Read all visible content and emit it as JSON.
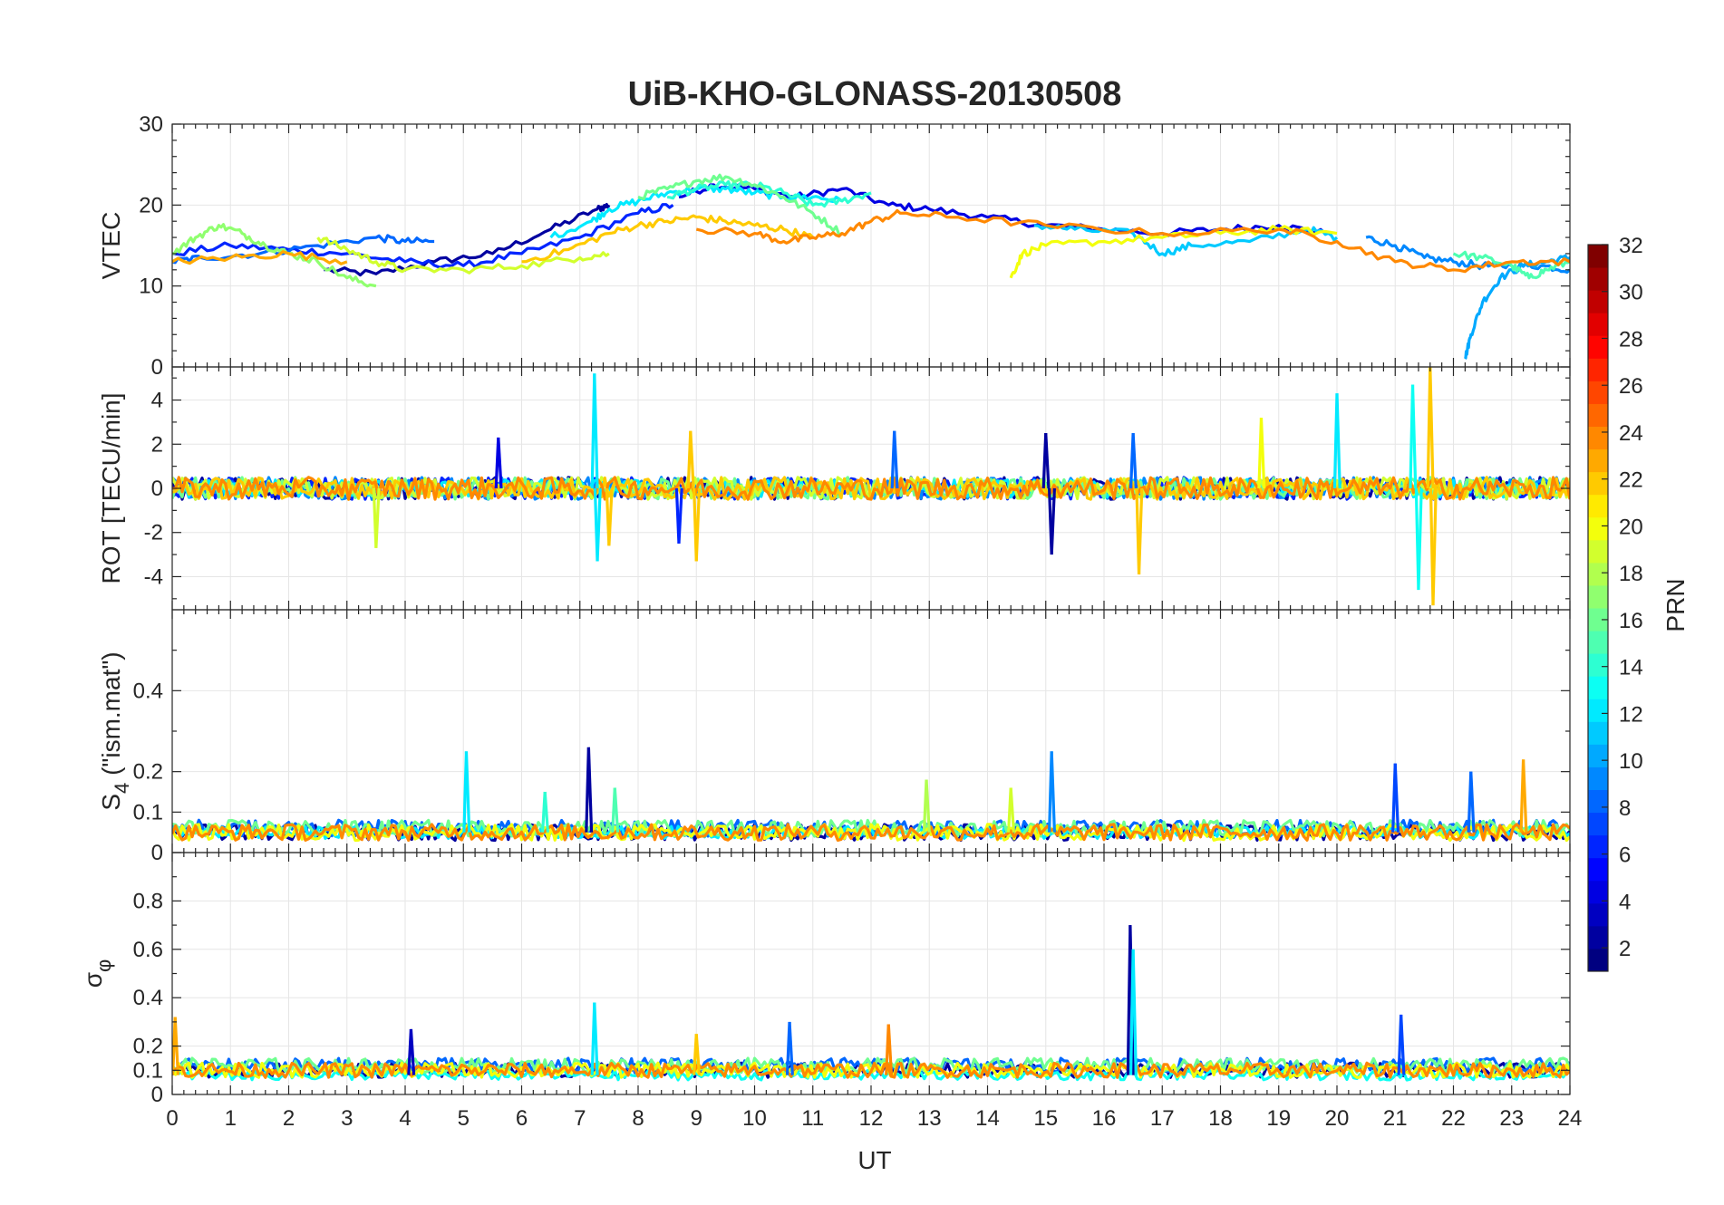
{
  "figure": {
    "title": "UiB-KHO-GLONASS-20130508",
    "xlabel": "UT",
    "x_ticks": [
      "0",
      "1",
      "2",
      "3",
      "4",
      "5",
      "6",
      "7",
      "8",
      "9",
      "10",
      "11",
      "12",
      "13",
      "14",
      "15",
      "16",
      "17",
      "18",
      "19",
      "20",
      "21",
      "22",
      "23",
      "24"
    ]
  },
  "colorbar": {
    "label": "PRN",
    "ticks": [
      "2",
      "4",
      "6",
      "8",
      "10",
      "12",
      "14",
      "16",
      "18",
      "20",
      "22",
      "24",
      "26",
      "28",
      "30",
      "32"
    ],
    "range": [
      1,
      32
    ],
    "colormap": "jet"
  },
  "chart_data": [
    {
      "type": "line",
      "panel": "VTEC",
      "ylabel": "VTEC",
      "ylim": [
        0,
        30
      ],
      "y_ticks": [
        "0",
        "10",
        "20",
        "30"
      ],
      "xlim": [
        0,
        24
      ],
      "grid": true,
      "series": [
        {
          "prn": 2,
          "x": [
            2.6,
            3.5,
            4.5,
            5.5,
            6.5,
            7.3,
            7.5
          ],
          "y": [
            12,
            11.5,
            13,
            14,
            17,
            19.5,
            20
          ]
        },
        {
          "prn": 4,
          "x": [
            8.7,
            9.3,
            10.0,
            10.7,
            11.5,
            12.3,
            13.0,
            14.0,
            15.0,
            16.0,
            17.0,
            18.0,
            19.0,
            19.8
          ],
          "y": [
            21,
            22.5,
            22,
            21,
            22,
            20,
            19.5,
            18.5,
            17.5,
            17,
            16.5,
            17,
            17.5,
            16.5
          ]
        },
        {
          "prn": 6,
          "x": [
            0,
            1,
            2,
            3,
            4,
            5,
            6,
            7,
            8,
            8.6
          ],
          "y": [
            14,
            15,
            14.5,
            14,
            13,
            12.5,
            14,
            16,
            19,
            20
          ]
        },
        {
          "prn": 8,
          "x": [
            0,
            0.5,
            1.5,
            2.5,
            3.5,
            4.0,
            4.5
          ],
          "y": [
            13,
            13.5,
            14,
            15,
            16,
            15.5,
            15.5
          ]
        },
        {
          "prn": 9,
          "x": [
            20.5,
            21.0,
            21.5,
            22.0,
            22.5,
            23.0,
            23.5,
            24.0
          ],
          "y": [
            16,
            15,
            13.5,
            13,
            12.5,
            12.5,
            12.5,
            12
          ]
        },
        {
          "prn": 10,
          "x": [
            22.2,
            22.3,
            22.5,
            22.8,
            23.2,
            23.6,
            24.0
          ],
          "y": [
            1,
            4,
            8,
            11,
            12.5,
            13,
            13.5
          ]
        },
        {
          "prn": 11,
          "x": [
            14.8,
            15.5,
            16.5,
            17.0,
            17.5,
            18.5,
            19.5,
            20.0
          ],
          "y": [
            17.5,
            17,
            16.5,
            14,
            15,
            15.5,
            17,
            16
          ]
        },
        {
          "prn": 12,
          "x": [
            6.5,
            7.2,
            7.5,
            8.0,
            8.5,
            9.0,
            9.5,
            10.0,
            10.5,
            11.0,
            11.5
          ],
          "y": [
            16,
            18,
            19.5,
            20.5,
            21.5,
            22,
            22,
            21.5,
            21,
            21,
            20.5
          ]
        },
        {
          "prn": 14,
          "x": [
            8.5,
            9.0,
            9.5,
            10.0,
            10.5,
            11.0,
            11.5,
            12.0
          ],
          "y": [
            21,
            22,
            22.5,
            22.5,
            21.5,
            20,
            20.5,
            21.5
          ]
        },
        {
          "prn": 15,
          "x": [
            22.0,
            22.5,
            23.0,
            23.3,
            23.6,
            24.0
          ],
          "y": [
            14,
            13.5,
            12.5,
            11,
            12,
            13
          ]
        },
        {
          "prn": 16,
          "x": [
            8.0,
            8.5,
            9.0,
            9.5,
            10.0,
            10.5,
            11.0,
            11.5
          ],
          "y": [
            21,
            22,
            23,
            23.5,
            22.5,
            21,
            19,
            16.5
          ]
        },
        {
          "prn": 17,
          "x": [
            0,
            0.4,
            0.8,
            1.2,
            1.6,
            2.0,
            2.5,
            3.0,
            3.5
          ],
          "y": [
            14,
            16,
            17.5,
            16.5,
            15,
            14,
            13,
            11,
            10
          ]
        },
        {
          "prn": 19,
          "x": [
            2.5,
            3.0,
            3.5,
            4.0,
            5.0,
            6.0,
            7.0,
            7.5
          ],
          "y": [
            16,
            14.5,
            13,
            12,
            12,
            12.5,
            13.5,
            14
          ]
        },
        {
          "prn": 20,
          "x": [
            14.4,
            14.6,
            15.0,
            16.0,
            17.0,
            18.0,
            19.0,
            20.0
          ],
          "y": [
            11,
            14,
            15,
            15.5,
            16,
            16.5,
            17,
            16.5
          ]
        },
        {
          "prn": 22,
          "x": [
            6.0,
            6.8,
            7.5,
            8.0,
            8.5,
            9.0,
            9.5,
            10.0,
            10.5,
            11.0
          ],
          "y": [
            13,
            14.5,
            16.5,
            17.5,
            18,
            18.5,
            18,
            17.5,
            17,
            16
          ]
        },
        {
          "prn": 23,
          "x": [
            0,
            1.0,
            2.0,
            3.0
          ],
          "y": [
            13,
            13.5,
            14,
            13
          ]
        },
        {
          "prn": 24,
          "x": [
            9.0,
            10.0,
            10.5,
            11.0,
            11.5,
            12.0,
            12.5,
            13.5,
            15.0,
            17.0,
            19.0,
            20.0,
            21.0,
            22.0,
            23.0,
            24.0
          ],
          "y": [
            17,
            16.5,
            15.5,
            16,
            16.5,
            18,
            19,
            18.5,
            17.5,
            16.5,
            17,
            15.5,
            13,
            12,
            13,
            13
          ]
        }
      ]
    },
    {
      "type": "line",
      "panel": "ROT",
      "ylabel": "ROT [TECU/min]",
      "ylim": [
        -5.5,
        5.5
      ],
      "y_ticks": [
        "-4",
        "-2",
        "0",
        "2",
        "4"
      ],
      "xlim": [
        0,
        24
      ],
      "grid": true,
      "series": [
        {
          "prn": 2,
          "x": [
            0,
            24
          ],
          "y": [
            0,
            0
          ],
          "noise_amplitude": 0.5
        },
        {
          "prn": 6,
          "x": [
            0,
            24
          ],
          "y": [
            0,
            0
          ],
          "noise_amplitude": 0.5
        },
        {
          "prn": 9,
          "x": [
            0,
            24
          ],
          "y": [
            0,
            0
          ],
          "noise_amplitude": 0.5
        },
        {
          "prn": 12,
          "x": [
            0,
            24
          ],
          "y": [
            0,
            0
          ],
          "noise_amplitude": 0.4
        },
        {
          "prn": 16,
          "x": [
            0,
            24
          ],
          "y": [
            0,
            0
          ],
          "noise_amplitude": 0.5
        },
        {
          "prn": 19,
          "x": [
            0,
            24
          ],
          "y": [
            0,
            0
          ],
          "noise_amplitude": 0.5
        },
        {
          "prn": 22,
          "x": [
            0,
            24
          ],
          "y": [
            0,
            0
          ],
          "noise_amplitude": 0.5
        },
        {
          "prn": 24,
          "x": [
            0,
            24
          ],
          "y": [
            0,
            0
          ],
          "noise_amplitude": 0.5
        }
      ],
      "spikes": [
        {
          "x": 3.5,
          "y": -2.7,
          "prn": 19
        },
        {
          "x": 5.6,
          "y": 2.3,
          "prn": 4
        },
        {
          "x": 7.25,
          "y": 5.2,
          "prn": 12
        },
        {
          "x": 7.3,
          "y": -3.3,
          "prn": 12
        },
        {
          "x": 7.5,
          "y": -2.6,
          "prn": 22
        },
        {
          "x": 8.7,
          "y": -2.5,
          "prn": 6
        },
        {
          "x": 8.9,
          "y": 2.6,
          "prn": 22
        },
        {
          "x": 9.0,
          "y": -3.3,
          "prn": 22
        },
        {
          "x": 12.4,
          "y": 2.6,
          "prn": 8
        },
        {
          "x": 15.0,
          "y": 2.5,
          "prn": 2
        },
        {
          "x": 15.1,
          "y": -3.0,
          "prn": 2
        },
        {
          "x": 16.5,
          "y": 2.5,
          "prn": 8
        },
        {
          "x": 16.6,
          "y": -3.9,
          "prn": 22
        },
        {
          "x": 18.7,
          "y": 3.2,
          "prn": 20
        },
        {
          "x": 20.0,
          "y": 4.3,
          "prn": 12
        },
        {
          "x": 21.3,
          "y": 4.7,
          "prn": 13
        },
        {
          "x": 21.4,
          "y": -4.6,
          "prn": 13
        },
        {
          "x": 21.6,
          "y": 5.5,
          "prn": 22
        },
        {
          "x": 21.65,
          "y": -5.3,
          "prn": 22
        }
      ]
    },
    {
      "type": "line",
      "panel": "S4",
      "ylabel": "S_4 (\"ism.mat\")",
      "ylabel_main": "S",
      "ylabel_sub": "4",
      "ylabel_rest": " (\"ism.mat\")",
      "ylim": [
        0,
        0.6
      ],
      "y_ticks": [
        "0",
        "0.1",
        "0.2",
        "0.4"
      ],
      "xlim": [
        0,
        24
      ],
      "grid": true,
      "series": [
        {
          "prn": 2,
          "x": [
            0,
            24
          ],
          "y": [
            0.05,
            0.05
          ],
          "noise_amplitude": 0.02
        },
        {
          "prn": 8,
          "x": [
            0,
            24
          ],
          "y": [
            0.06,
            0.06
          ],
          "noise_amplitude": 0.02
        },
        {
          "prn": 12,
          "x": [
            0,
            24
          ],
          "y": [
            0.05,
            0.05
          ],
          "noise_amplitude": 0.015
        },
        {
          "prn": 16,
          "x": [
            0,
            24
          ],
          "y": [
            0.06,
            0.06
          ],
          "noise_amplitude": 0.02
        },
        {
          "prn": 20,
          "x": [
            0,
            24
          ],
          "y": [
            0.05,
            0.05
          ],
          "noise_amplitude": 0.02
        },
        {
          "prn": 24,
          "x": [
            0,
            24
          ],
          "y": [
            0.05,
            0.05
          ],
          "noise_amplitude": 0.02
        }
      ],
      "spikes": [
        {
          "x": 5.05,
          "y": 0.25,
          "prn": 12
        },
        {
          "x": 6.4,
          "y": 0.15,
          "prn": 14
        },
        {
          "x": 7.15,
          "y": 0.26,
          "prn": 2
        },
        {
          "x": 7.6,
          "y": 0.16,
          "prn": 15
        },
        {
          "x": 12.95,
          "y": 0.18,
          "prn": 18
        },
        {
          "x": 14.4,
          "y": 0.16,
          "prn": 19
        },
        {
          "x": 15.1,
          "y": 0.25,
          "prn": 9
        },
        {
          "x": 21.0,
          "y": 0.22,
          "prn": 7
        },
        {
          "x": 22.3,
          "y": 0.2,
          "prn": 8
        },
        {
          "x": 23.2,
          "y": 0.23,
          "prn": 23
        }
      ]
    },
    {
      "type": "line",
      "panel": "sigma_phi",
      "ylabel": "σ_φ",
      "ylabel_main": "σ",
      "ylabel_sub": "φ",
      "ylim": [
        0,
        1.0
      ],
      "y_ticks": [
        "0",
        "0.1",
        "0.2",
        "0.4",
        "0.6",
        "0.8"
      ],
      "xlim": [
        0,
        24
      ],
      "grid": true,
      "series": [
        {
          "prn": 2,
          "x": [
            0,
            24
          ],
          "y": [
            0.1,
            0.1
          ],
          "noise_amplitude": 0.03
        },
        {
          "prn": 8,
          "x": [
            0,
            24
          ],
          "y": [
            0.12,
            0.12
          ],
          "noise_amplitude": 0.03
        },
        {
          "prn": 13,
          "x": [
            0,
            24
          ],
          "y": [
            0.08,
            0.08
          ],
          "noise_amplitude": 0.02
        },
        {
          "prn": 16,
          "x": [
            0,
            24
          ],
          "y": [
            0.12,
            0.12
          ],
          "noise_amplitude": 0.03
        },
        {
          "prn": 20,
          "x": [
            0,
            24
          ],
          "y": [
            0.1,
            0.1
          ],
          "noise_amplitude": 0.03
        },
        {
          "prn": 24,
          "x": [
            0,
            24
          ],
          "y": [
            0.1,
            0.1
          ],
          "noise_amplitude": 0.03
        }
      ],
      "spikes": [
        {
          "x": 0.05,
          "y": 0.32,
          "prn": 23
        },
        {
          "x": 4.1,
          "y": 0.27,
          "prn": 3
        },
        {
          "x": 7.25,
          "y": 0.38,
          "prn": 12
        },
        {
          "x": 9.0,
          "y": 0.25,
          "prn": 22
        },
        {
          "x": 10.6,
          "y": 0.3,
          "prn": 8
        },
        {
          "x": 12.3,
          "y": 0.29,
          "prn": 24
        },
        {
          "x": 16.45,
          "y": 0.7,
          "prn": 2
        },
        {
          "x": 16.5,
          "y": 0.6,
          "prn": 12
        },
        {
          "x": 21.1,
          "y": 0.33,
          "prn": 7
        }
      ]
    }
  ]
}
